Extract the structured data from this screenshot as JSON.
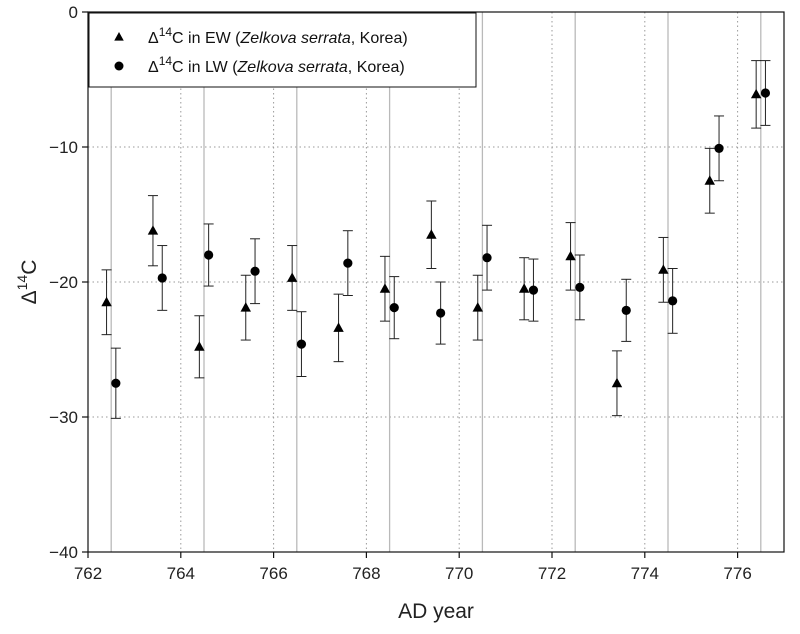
{
  "chart_data": {
    "type": "scatter",
    "title": "",
    "xlabel": "AD year",
    "ylabel": {
      "main": "Δ",
      "sup": "14",
      "tail": "C"
    },
    "xlim": [
      762,
      777
    ],
    "ylim": [
      -40,
      0
    ],
    "xticks": [
      762,
      764,
      766,
      768,
      770,
      772,
      774,
      776
    ],
    "yticks": [
      0,
      -10,
      -20,
      -30,
      -40
    ],
    "ytick_labels": [
      "0",
      "−10",
      "−20",
      "−30",
      "−40"
    ],
    "grid": {
      "solid_vertical_at": [
        762.5,
        764.5,
        766.5,
        768.5,
        770.5,
        772.5,
        774.5,
        776.5
      ],
      "dotted": true
    },
    "legend_placement": "top-left",
    "series": [
      {
        "name": "Δ14C in EW (Zelkova serrata, Korea)",
        "legend": {
          "pre": "Δ",
          "sup": "14",
          "mid": "C in EW (",
          "italic": "Zelkova serrata",
          "post": ", Korea)"
        },
        "marker": "triangle",
        "x": [
          762.4,
          763.4,
          764.4,
          765.4,
          766.4,
          767.4,
          768.4,
          769.4,
          770.4,
          771.4,
          772.4,
          773.4,
          774.4,
          775.4,
          776.4
        ],
        "y": [
          -21.5,
          -16.2,
          -24.8,
          -21.9,
          -19.7,
          -23.4,
          -20.5,
          -16.5,
          -21.9,
          -20.5,
          -18.1,
          -27.5,
          -19.1,
          -12.5,
          -6.1
        ],
        "err": [
          2.4,
          2.6,
          2.3,
          2.4,
          2.4,
          2.5,
          2.4,
          2.5,
          2.4,
          2.3,
          2.5,
          2.4,
          2.4,
          2.4,
          2.5
        ]
      },
      {
        "name": "Δ14C in LW (Zelkova serrata, Korea)",
        "legend": {
          "pre": "Δ",
          "sup": "14",
          "mid": "C in LW (",
          "italic": "Zelkova serrata",
          "post": ", Korea)"
        },
        "marker": "circle",
        "x": [
          762.6,
          763.6,
          764.6,
          765.6,
          766.6,
          767.6,
          768.6,
          769.6,
          770.6,
          771.6,
          772.6,
          773.6,
          774.6,
          775.6,
          776.6
        ],
        "y": [
          -27.5,
          -19.7,
          -18.0,
          -19.2,
          -24.6,
          -18.6,
          -21.9,
          -22.3,
          -18.2,
          -20.6,
          -20.4,
          -22.1,
          -21.4,
          -10.1,
          -6.0
        ],
        "err": [
          2.6,
          2.4,
          2.3,
          2.4,
          2.4,
          2.4,
          2.3,
          2.3,
          2.4,
          2.3,
          2.4,
          2.3,
          2.4,
          2.4,
          2.4
        ]
      }
    ]
  }
}
